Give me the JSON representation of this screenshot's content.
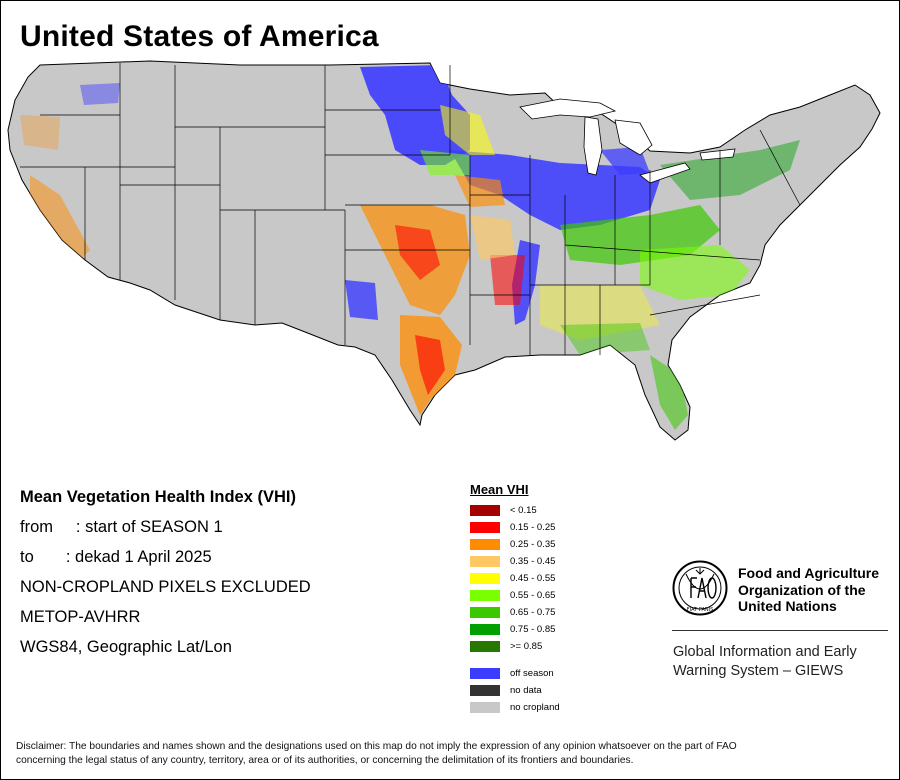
{
  "title": "United States of America",
  "info_lines": [
    "Mean Vegetation Health Index (VHI)",
    "from     : start of SEASON 1",
    "to       : dekad 1 April 2025",
    "NON-CROPLAND PIXELS EXCLUDED",
    "METOP-AVHRR",
    "WGS84, Geographic Lat/Lon"
  ],
  "legend": {
    "title": "Mean VHI",
    "classes": [
      {
        "label": "< 0.15",
        "color": "#a50000"
      },
      {
        "label": "0.15 - 0.25",
        "color": "#ff0000"
      },
      {
        "label": "0.25 - 0.35",
        "color": "#ff8c00"
      },
      {
        "label": "0.35 - 0.45",
        "color": "#ffc864"
      },
      {
        "label": "0.45 - 0.55",
        "color": "#ffff00"
      },
      {
        "label": "0.55 - 0.65",
        "color": "#78ff00"
      },
      {
        "label": "0.65 - 0.75",
        "color": "#3cc800"
      },
      {
        "label": "0.75 - 0.85",
        "color": "#00a000"
      },
      {
        "label": ">= 0.85",
        "color": "#287800"
      }
    ],
    "other": [
      {
        "label": "off season",
        "color": "#3c3cff"
      },
      {
        "label": "no data",
        "color": "#333333"
      },
      {
        "label": "no cropland",
        "color": "#c8c8c8"
      }
    ]
  },
  "fao": {
    "logo_text": "FAO",
    "motto": "FIAT PANIS",
    "org_lines": [
      "Food and Agriculture",
      "Organization of the",
      "United Nations"
    ],
    "giews_lines": [
      "Global Information and Early",
      "Warning System – GIEWS"
    ]
  },
  "disclaimer": [
    "Disclaimer: The boundaries and names shown and the designations used on this map do not imply the expression of any opinion whatsoever on the part of FAO",
    "concerning the legal status of any country, territory, area or of its authorities, or concerning the delimitation of its frontiers and boundaries."
  ],
  "colors": {
    "land": "#c8c8c8",
    "boundary": "#000000",
    "lakes": "#ffffff"
  }
}
